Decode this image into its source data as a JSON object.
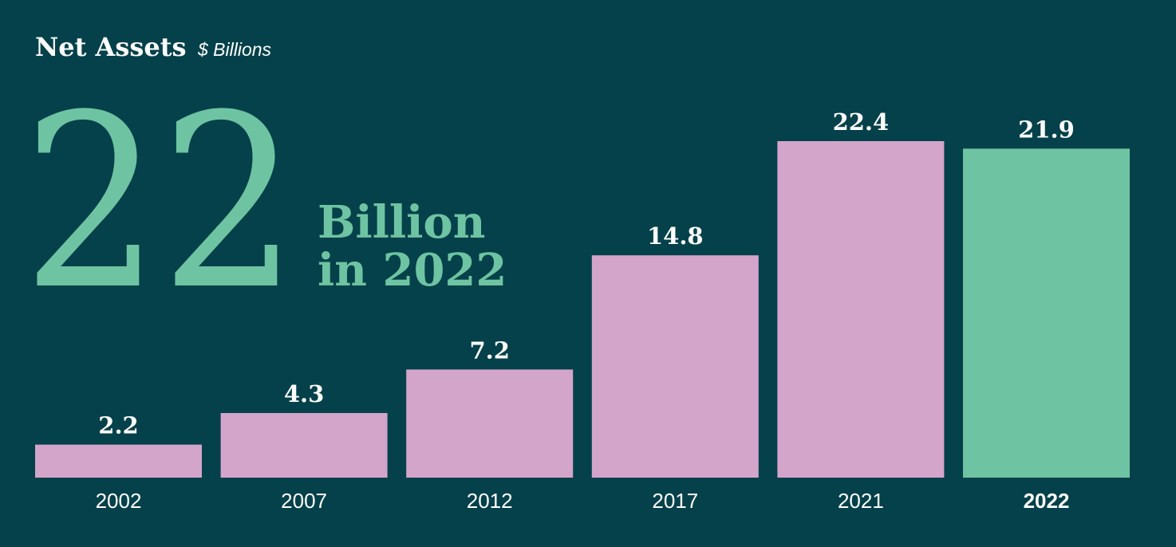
{
  "chart_data": {
    "type": "bar",
    "title": "Net Assets",
    "subtitle": "$ Billions",
    "categories": [
      "2002",
      "2007",
      "2012",
      "2017",
      "2021",
      "2022"
    ],
    "values": [
      2.2,
      4.3,
      7.2,
      14.8,
      22.4,
      21.9
    ],
    "highlight_category": "2022",
    "ylim": [
      0,
      22.4
    ],
    "grid": false,
    "legend": "none"
  },
  "callout": {
    "number": "22",
    "line1": "Billion",
    "line2": "in 2022"
  },
  "colors": {
    "background": "#05414a",
    "bar": "#d3a5cb",
    "highlight": "#6ec4a2",
    "text": "#ffffff"
  }
}
